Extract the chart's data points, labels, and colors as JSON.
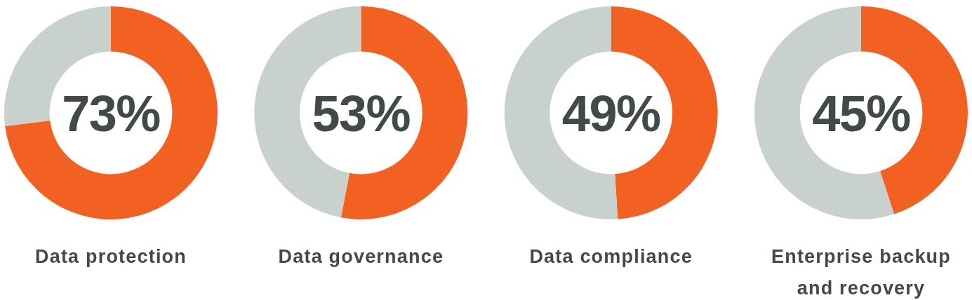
{
  "chart_data": [
    {
      "type": "donut",
      "title": "Data protection",
      "categories": [
        null,
        null
      ],
      "values": [
        73,
        27
      ],
      "colors": [
        "#f26122",
        "#c9d1cc"
      ],
      "value_labels": [
        "73%",
        null
      ]
    },
    {
      "type": "donut",
      "title": "Data governance",
      "categories": [
        null,
        null
      ],
      "values": [
        53,
        47
      ],
      "colors": [
        "#f26122",
        "#c9d1cc"
      ],
      "value_labels": [
        "53%",
        null
      ]
    },
    {
      "type": "donut",
      "title": "Data compliance",
      "categories": [
        null,
        null
      ],
      "values": [
        49,
        51
      ],
      "colors": [
        "#f26122",
        "#c9d1cc"
      ],
      "value_labels": [
        "49%",
        null
      ]
    },
    {
      "type": "donut",
      "title": "Enterprise backup and recovery",
      "categories": [
        null,
        null
      ],
      "values": [
        45,
        55
      ],
      "colors": [
        "#f26122",
        "#c9d1cc"
      ],
      "value_labels": [
        "45%",
        null
      ]
    }
  ]
}
